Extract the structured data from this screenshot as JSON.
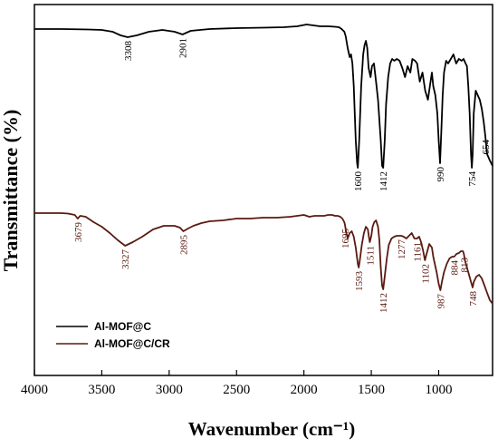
{
  "chart_data": {
    "type": "line",
    "title": "",
    "xlabel": "Wavenumber (cm⁻¹)",
    "ylabel": "Transmittance (%)",
    "xlim": [
      4000,
      600
    ],
    "x_reversed": true,
    "x_ticks": [
      4000,
      3500,
      3000,
      2500,
      2000,
      1500,
      1000
    ],
    "y_ticks_shown": false,
    "legend_position": "bottom-left",
    "grid": false,
    "series": [
      {
        "name": "Al-MOF@C",
        "color": "#000000",
        "x": [
          4000,
          3800,
          3600,
          3500,
          3420,
          3360,
          3308,
          3240,
          3150,
          3050,
          2960,
          2901,
          2840,
          2700,
          2500,
          2300,
          2150,
          2050,
          1980,
          1930,
          1880,
          1820,
          1770,
          1740,
          1720,
          1700,
          1690,
          1675,
          1660,
          1650,
          1640,
          1630,
          1615,
          1605,
          1600,
          1590,
          1575,
          1560,
          1550,
          1540,
          1530,
          1520,
          1505,
          1495,
          1480,
          1465,
          1450,
          1430,
          1420,
          1412,
          1400,
          1390,
          1375,
          1360,
          1345,
          1330,
          1310,
          1290,
          1270,
          1250,
          1230,
          1210,
          1195,
          1175,
          1160,
          1140,
          1120,
          1100,
          1080,
          1060,
          1050,
          1040,
          1025,
          1010,
          1000,
          990,
          980,
          970,
          960,
          945,
          930,
          910,
          890,
          870,
          850,
          830,
          815,
          800,
          790,
          780,
          770,
          760,
          754,
          748,
          740,
          725,
          710,
          695,
          680,
          665,
          654,
          640,
          620,
          600
        ],
        "y": [
          27,
          27,
          27.5,
          28,
          30,
          34,
          36,
          34,
          30,
          28,
          30,
          33,
          29,
          27,
          26,
          25.5,
          25,
          24,
          22,
          23,
          24,
          24,
          24.5,
          25,
          27,
          30,
          35,
          48,
          58,
          55,
          65,
          90,
          150,
          175,
          180,
          150,
          90,
          55,
          45,
          40,
          48,
          70,
          80,
          68,
          65,
          85,
          105,
          150,
          178,
          180,
          150,
          110,
          80,
          65,
          60,
          62,
          60,
          62,
          70,
          80,
          68,
          75,
          60,
          62,
          65,
          85,
          75,
          95,
          105,
          85,
          75,
          90,
          100,
          120,
          150,
          175,
          140,
          100,
          75,
          62,
          65,
          60,
          55,
          65,
          60,
          62,
          60,
          65,
          68,
          90,
          120,
          165,
          180,
          165,
          120,
          95,
          100,
          105,
          115,
          130,
          145,
          165,
          172,
          178
        ]
      },
      {
        "name": "Al-MOF@C/CR",
        "color": "#5a1a10",
        "x": [
          4000,
          3900,
          3800,
          3750,
          3700,
          3679,
          3660,
          3620,
          3560,
          3500,
          3440,
          3380,
          3327,
          3270,
          3200,
          3120,
          3040,
          2960,
          2920,
          2895,
          2860,
          2820,
          2760,
          2700,
          2600,
          2500,
          2400,
          2300,
          2200,
          2100,
          2050,
          2000,
          1960,
          1920,
          1880,
          1850,
          1820,
          1790,
          1770,
          1750,
          1730,
          1715,
          1700,
          1695,
          1688,
          1675,
          1660,
          1645,
          1630,
          1615,
          1600,
          1593,
          1585,
          1570,
          1555,
          1540,
          1525,
          1518,
          1511,
          1500,
          1490,
          1478,
          1465,
          1450,
          1440,
          1430,
          1420,
          1412,
          1400,
          1385,
          1370,
          1350,
          1330,
          1310,
          1290,
          1277,
          1260,
          1240,
          1220,
          1200,
          1180,
          1161,
          1145,
          1130,
          1115,
          1102,
          1090,
          1070,
          1050,
          1040,
          1030,
          1015,
          1000,
          987,
          975,
          960,
          940,
          920,
          900,
          884,
          868,
          850,
          835,
          820,
          813,
          805,
          790,
          775,
          760,
          748,
          740,
          720,
          700,
          680,
          660,
          640,
          620,
          600
        ],
        "y": [
          230,
          230,
          230,
          230.5,
          232,
          236,
          233,
          234,
          240,
          245,
          252,
          260,
          266,
          262,
          256,
          248,
          244,
          244,
          246,
          250,
          247,
          244,
          241,
          239,
          238,
          236,
          236,
          235,
          235,
          234,
          233,
          232,
          234,
          233,
          233,
          233,
          232,
          232,
          233,
          233,
          234,
          236,
          240,
          243,
          250,
          258,
          252,
          250,
          256,
          268,
          286,
          290,
          282,
          265,
          252,
          245,
          248,
          256,
          262,
          255,
          245,
          240,
          238,
          245,
          260,
          290,
          310,
          314,
          300,
          280,
          265,
          258,
          256,
          255,
          255,
          255,
          256,
          258,
          255,
          252,
          258,
          258,
          256,
          262,
          272,
          282,
          275,
          264,
          268,
          278,
          285,
          295,
          308,
          315,
          305,
          295,
          286,
          280,
          278,
          278,
          275,
          274,
          272,
          272,
          275,
          282,
          290,
          298,
          306,
          312,
          306,
          300,
          298,
          302,
          310,
          318,
          326,
          330
        ]
      }
    ],
    "annotations": [
      {
        "text": "3308",
        "series": 0,
        "x": 3308
      },
      {
        "text": "2901",
        "series": 0,
        "x": 2901
      },
      {
        "text": "1600",
        "series": 0,
        "x": 1600
      },
      {
        "text": "1412",
        "series": 0,
        "x": 1412
      },
      {
        "text": "990",
        "series": 0,
        "x": 990
      },
      {
        "text": "754",
        "series": 0,
        "x": 754
      },
      {
        "text": "654",
        "series": 0,
        "x": 654
      },
      {
        "text": "3679",
        "series": 1,
        "x": 3679
      },
      {
        "text": "3327",
        "series": 1,
        "x": 3327
      },
      {
        "text": "2895",
        "series": 1,
        "x": 2895
      },
      {
        "text": "1695",
        "series": 1,
        "x": 1695
      },
      {
        "text": "1593",
        "series": 1,
        "x": 1593
      },
      {
        "text": "1511",
        "series": 1,
        "x": 1511
      },
      {
        "text": "1412",
        "series": 1,
        "x": 1412
      },
      {
        "text": "1277",
        "series": 1,
        "x": 1277
      },
      {
        "text": "1161",
        "series": 1,
        "x": 1161
      },
      {
        "text": "1102",
        "series": 1,
        "x": 1102
      },
      {
        "text": "987",
        "series": 1,
        "x": 987
      },
      {
        "text": "884",
        "series": 1,
        "x": 884
      },
      {
        "text": "813",
        "series": 1,
        "x": 813
      },
      {
        "text": "748",
        "series": 1,
        "x": 748
      }
    ]
  }
}
